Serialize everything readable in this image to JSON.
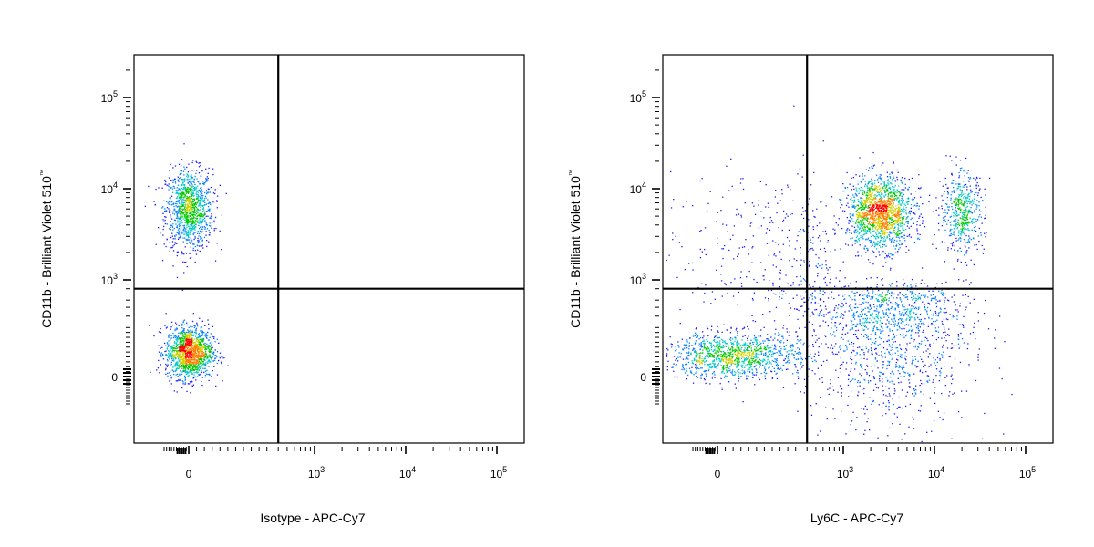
{
  "chart_data": [
    {
      "type": "scatter",
      "subtype": "flow-cytometry-density",
      "xlabel": "Isotype - APC-Cy7",
      "ylabel": "CD11b - Brilliant Violet 510",
      "ylabel_mark": "™",
      "scale": "biexponential",
      "x_ticks": [
        {
          "value": 0,
          "base": "0",
          "exp": ""
        },
        {
          "value": 1000,
          "base": "10",
          "exp": "3"
        },
        {
          "value": 10000,
          "base": "10",
          "exp": "4"
        },
        {
          "value": 100000,
          "base": "10",
          "exp": "5"
        }
      ],
      "y_ticks": [
        {
          "value": 0,
          "base": "0",
          "exp": ""
        },
        {
          "value": 1000,
          "base": "10",
          "exp": "3"
        },
        {
          "value": 10000,
          "base": "10",
          "exp": "4"
        },
        {
          "value": 100000,
          "base": "10",
          "exp": "5"
        }
      ],
      "gates": {
        "x": 400,
        "y": 800
      },
      "populations": [
        {
          "name": "",
          "x_center": 0,
          "y_center": 6000,
          "count": 1100,
          "xlog": false,
          "ylog": true,
          "x_spread": 45,
          "y_spread": 0.22
        },
        {
          "name": "",
          "x_center": 0,
          "y_center": 150,
          "count": 1400,
          "xlog": false,
          "ylog": false,
          "x_spread": 45,
          "y_spread": 80
        }
      ]
    },
    {
      "type": "scatter",
      "subtype": "flow-cytometry-density",
      "xlabel": "Ly6C - APC-Cy7",
      "ylabel": "CD11b - Brilliant Violet 510",
      "ylabel_mark": "™",
      "scale": "biexponential",
      "x_ticks": [
        {
          "value": 0,
          "base": "0",
          "exp": ""
        },
        {
          "value": 1000,
          "base": "10",
          "exp": "3"
        },
        {
          "value": 10000,
          "base": "10",
          "exp": "4"
        },
        {
          "value": 100000,
          "base": "10",
          "exp": "5"
        }
      ],
      "y_ticks": [
        {
          "value": 0,
          "base": "0",
          "exp": ""
        },
        {
          "value": 1000,
          "base": "10",
          "exp": "3"
        },
        {
          "value": 10000,
          "base": "10",
          "exp": "4"
        },
        {
          "value": 100000,
          "base": "10",
          "exp": "5"
        }
      ],
      "gates": {
        "x": 400,
        "y": 800
      },
      "populations": [
        {
          "name": "",
          "x_center": 2500,
          "y_center": 5500,
          "count": 1600,
          "xlog": true,
          "ylog": true,
          "x_spread": 0.18,
          "y_spread": 0.2
        },
        {
          "name": "",
          "x_center": 20000,
          "y_center": 5500,
          "count": 500,
          "xlog": true,
          "ylog": true,
          "x_spread": 0.12,
          "y_spread": 0.22
        },
        {
          "name": "",
          "x_center": 60,
          "y_center": 130,
          "count": 1200,
          "xlog": false,
          "ylog": false,
          "x_spread": 130,
          "y_spread": 70
        },
        {
          "name": "",
          "x_center": 3000,
          "y_center": 300,
          "count": 1400,
          "xlog": true,
          "ylog": false,
          "x_spread": 0.45,
          "y_spread": 300
        },
        {
          "name": "",
          "x_center": 200,
          "y_center": 2000,
          "count": 400,
          "xlog": false,
          "ylog": true,
          "x_spread": 250,
          "y_spread": 0.45
        }
      ]
    }
  ]
}
